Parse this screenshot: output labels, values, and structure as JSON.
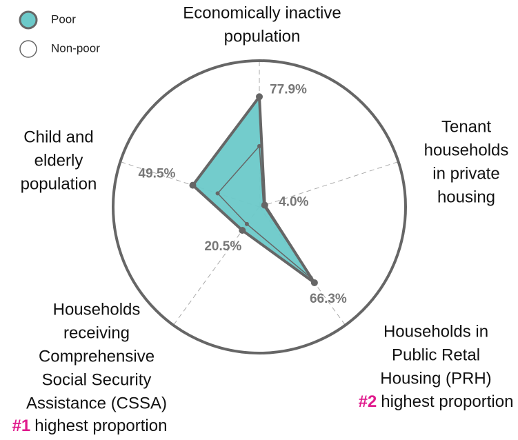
{
  "chart_data": {
    "type": "radar",
    "categories": [
      [
        "Economically inactive",
        "population"
      ],
      [
        "Tenant",
        "households",
        "in private",
        "housing"
      ],
      [
        "Households in",
        "Public Retal",
        "Housing (PRH)"
      ],
      [
        "Households",
        "receiving",
        "Comprehensive",
        "Social Security",
        "Assistance (CSSA)"
      ],
      [
        "Child and",
        "elderly",
        "population"
      ]
    ],
    "series": [
      {
        "name": "Poor",
        "color": "#6cc9c9",
        "values": [
          77.9,
          4.0,
          66.3,
          20.5,
          49.5
        ],
        "value_labels": [
          "77.9%",
          "4.0%",
          "66.3%",
          "20.5%",
          "49.5%"
        ]
      },
      {
        "name": "Non-poor",
        "color": "#ffffff",
        "values": [
          43,
          3,
          62,
          15,
          31
        ]
      }
    ],
    "annotations": [
      {
        "rank": "#2",
        "text": "highest proportion"
      },
      {
        "rank": "#1",
        "text": "highest proportion"
      }
    ],
    "rlim": [
      0,
      100
    ]
  }
}
